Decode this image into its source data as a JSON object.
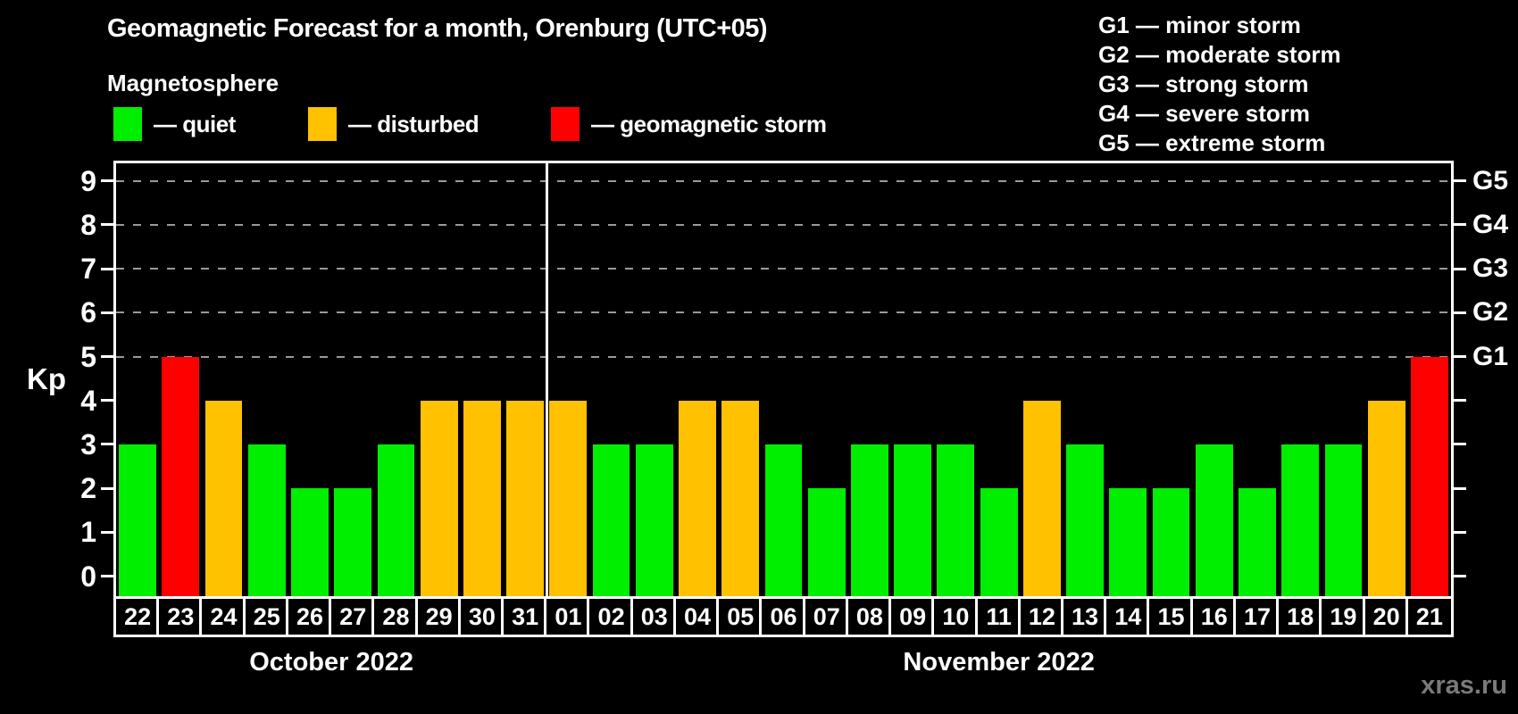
{
  "header": {
    "title": "Geomagnetic Forecast for a month, Orenburg (UTC+05)",
    "subtitle": "Magnetosphere"
  },
  "legend": {
    "items": [
      {
        "name": "quiet",
        "label": "— quiet",
        "color": "#00ee00"
      },
      {
        "name": "disturbed",
        "label": "— disturbed",
        "color": "#ffc100"
      },
      {
        "name": "storm",
        "label": "— geomagnetic storm",
        "color": "#ff0000"
      }
    ]
  },
  "storm_scale_legend": {
    "lines": [
      "G1 — minor storm",
      "G2 — moderate storm",
      "G3 — strong storm",
      "G4 — severe storm",
      "G5 — extreme storm"
    ]
  },
  "axes": {
    "left_label": "Kp",
    "left_ticks": [
      0,
      1,
      2,
      3,
      4,
      5,
      6,
      7,
      8,
      9
    ],
    "right_ticks": [
      0,
      1,
      2,
      3,
      4,
      5,
      6,
      7,
      8,
      9
    ],
    "right_labels": [
      {
        "kp": 5,
        "label": "G1"
      },
      {
        "kp": 6,
        "label": "G2"
      },
      {
        "kp": 7,
        "label": "G3"
      },
      {
        "kp": 8,
        "label": "G4"
      },
      {
        "kp": 9,
        "label": "G5"
      }
    ]
  },
  "watermark": "xras.ru",
  "colors": {
    "quiet": "#00ee00",
    "disturbed": "#ffc100",
    "storm": "#ff0000",
    "grid": "#9a9a9a",
    "axis": "#ffffff",
    "background": "#000000"
  },
  "chart_data": {
    "type": "bar",
    "title": "Geomagnetic Forecast for a month, Orenburg (UTC+05)",
    "ylabel": "Kp",
    "ylim": [
      0,
      9
    ],
    "grid_dashed_at": [
      5,
      6,
      7,
      8,
      9
    ],
    "months": [
      {
        "label": "October 2022",
        "days": 10
      },
      {
        "label": "November 2022",
        "days": 21
      }
    ],
    "points": [
      {
        "day": "22",
        "month": "October 2022",
        "kp": 3,
        "status": "quiet"
      },
      {
        "day": "23",
        "month": "October 2022",
        "kp": 5,
        "status": "storm"
      },
      {
        "day": "24",
        "month": "October 2022",
        "kp": 4,
        "status": "disturbed"
      },
      {
        "day": "25",
        "month": "October 2022",
        "kp": 3,
        "status": "quiet"
      },
      {
        "day": "26",
        "month": "October 2022",
        "kp": 2,
        "status": "quiet"
      },
      {
        "day": "27",
        "month": "October 2022",
        "kp": 2,
        "status": "quiet"
      },
      {
        "day": "28",
        "month": "October 2022",
        "kp": 3,
        "status": "quiet"
      },
      {
        "day": "29",
        "month": "October 2022",
        "kp": 4,
        "status": "disturbed"
      },
      {
        "day": "30",
        "month": "October 2022",
        "kp": 4,
        "status": "disturbed"
      },
      {
        "day": "31",
        "month": "October 2022",
        "kp": 4,
        "status": "disturbed"
      },
      {
        "day": "01",
        "month": "November 2022",
        "kp": 4,
        "status": "disturbed"
      },
      {
        "day": "02",
        "month": "November 2022",
        "kp": 3,
        "status": "quiet"
      },
      {
        "day": "03",
        "month": "November 2022",
        "kp": 3,
        "status": "quiet"
      },
      {
        "day": "04",
        "month": "November 2022",
        "kp": 4,
        "status": "disturbed"
      },
      {
        "day": "05",
        "month": "November 2022",
        "kp": 4,
        "status": "disturbed"
      },
      {
        "day": "06",
        "month": "November 2022",
        "kp": 3,
        "status": "quiet"
      },
      {
        "day": "07",
        "month": "November 2022",
        "kp": 2,
        "status": "quiet"
      },
      {
        "day": "08",
        "month": "November 2022",
        "kp": 3,
        "status": "quiet"
      },
      {
        "day": "09",
        "month": "November 2022",
        "kp": 3,
        "status": "quiet"
      },
      {
        "day": "10",
        "month": "November 2022",
        "kp": 3,
        "status": "quiet"
      },
      {
        "day": "11",
        "month": "November 2022",
        "kp": 2,
        "status": "quiet"
      },
      {
        "day": "12",
        "month": "November 2022",
        "kp": 4,
        "status": "disturbed"
      },
      {
        "day": "13",
        "month": "November 2022",
        "kp": 3,
        "status": "quiet"
      },
      {
        "day": "14",
        "month": "November 2022",
        "kp": 2,
        "status": "quiet"
      },
      {
        "day": "15",
        "month": "November 2022",
        "kp": 2,
        "status": "quiet"
      },
      {
        "day": "16",
        "month": "November 2022",
        "kp": 3,
        "status": "quiet"
      },
      {
        "day": "17",
        "month": "November 2022",
        "kp": 2,
        "status": "quiet"
      },
      {
        "day": "18",
        "month": "November 2022",
        "kp": 3,
        "status": "quiet"
      },
      {
        "day": "19",
        "month": "November 2022",
        "kp": 3,
        "status": "quiet"
      },
      {
        "day": "20",
        "month": "November 2022",
        "kp": 4,
        "status": "disturbed"
      },
      {
        "day": "21",
        "month": "November 2022",
        "kp": 5,
        "status": "storm"
      }
    ]
  }
}
